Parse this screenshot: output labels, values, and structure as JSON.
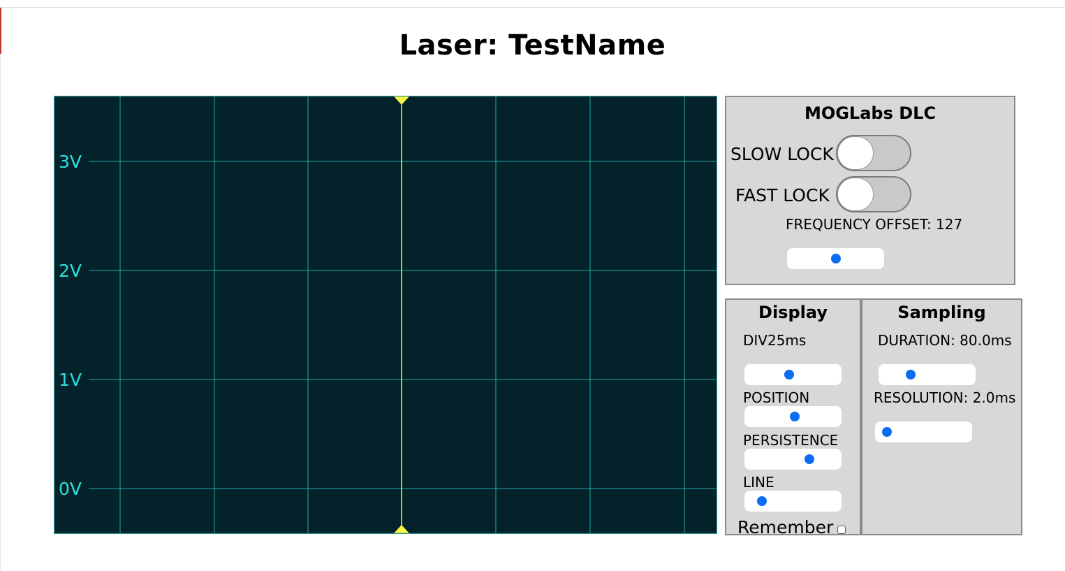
{
  "page": {
    "title": "Laser: TestName"
  },
  "scope": {
    "y_labels": [
      "3V",
      "2V",
      "1V",
      "0V"
    ],
    "colors": {
      "background": "#03222a",
      "grid": "#2cc4c4",
      "label": "#2de0e0",
      "trigger": "#f5f542"
    }
  },
  "dlc_panel": {
    "title": "MOGLabs DLC",
    "slow_lock_label": "SLOW LOCK",
    "slow_lock_on": false,
    "fast_lock_label": "FAST LOCK",
    "fast_lock_on": false,
    "frequency_offset_label": "FREQUENCY OFFSET: 127",
    "frequency_offset_level": 0.5
  },
  "display_panel": {
    "title": "Display",
    "div_label": "DIV25ms",
    "div_level": 0.45,
    "position_label": "POSITION",
    "position_level": 0.52,
    "persistence_label": "PERSISTENCE",
    "persistence_level": 0.7,
    "line_label": "LINE",
    "line_level": 0.12,
    "remember_label": "Remember",
    "remember_checked": false
  },
  "sampling_panel": {
    "title": "Sampling",
    "duration_label": "DURATION: 80.0ms",
    "duration_level": 0.3,
    "resolution_label": "RESOLUTION: 2.0ms",
    "resolution_level": 0.05
  },
  "colors": {
    "accent": "#0a6cf0",
    "panel_bg": "#d8d8d8"
  }
}
